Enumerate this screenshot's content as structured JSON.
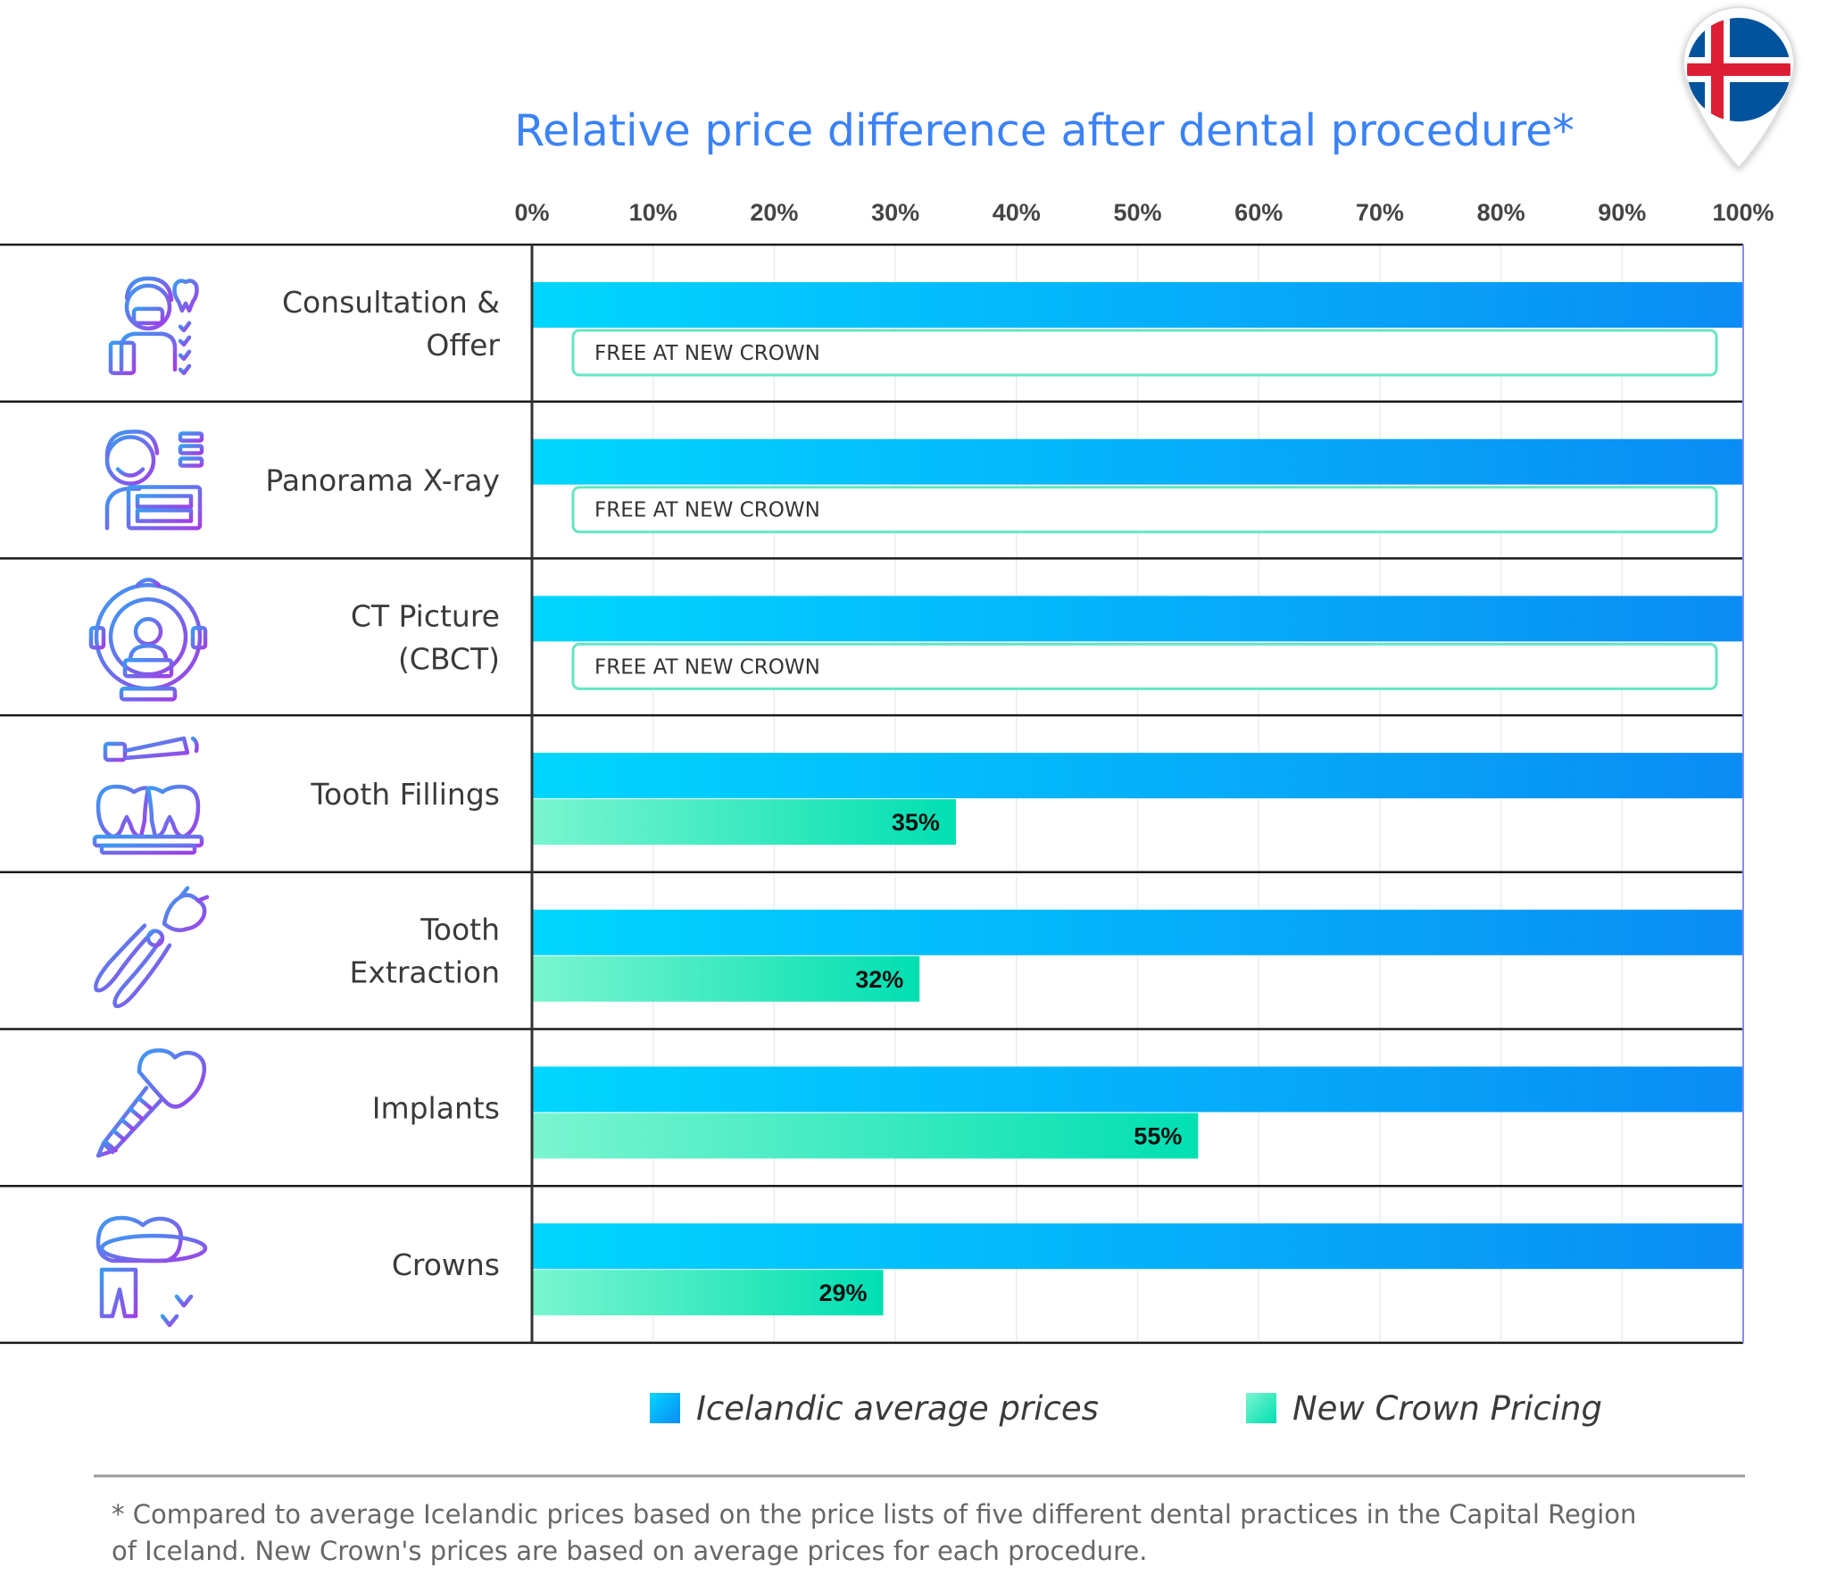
{
  "chart_data": {
    "type": "bar",
    "orientation": "horizontal",
    "title": "Relative price difference after dental procedure*",
    "x_ticks": [
      "0%",
      "10%",
      "20%",
      "30%",
      "40%",
      "50%",
      "60%",
      "70%",
      "80%",
      "90%",
      "100%"
    ],
    "xlim": [
      0,
      100
    ],
    "grid": true,
    "categories": [
      {
        "label_lines": [
          "Consultation &",
          "Offer"
        ],
        "icon": "consultation-icon"
      },
      {
        "label_lines": [
          "Panorama X-ray"
        ],
        "icon": "xray-icon"
      },
      {
        "label_lines": [
          "CT Picture",
          "(CBCT)"
        ],
        "icon": "ct-scanner-icon"
      },
      {
        "label_lines": [
          "Tooth Fillings"
        ],
        "icon": "filling-icon"
      },
      {
        "label_lines": [
          "Tooth",
          "Extraction"
        ],
        "icon": "extraction-icon"
      },
      {
        "label_lines": [
          "Implants"
        ],
        "icon": "implant-icon"
      },
      {
        "label_lines": [
          "Crowns"
        ],
        "icon": "crown-icon"
      }
    ],
    "series": [
      {
        "name": "Icelandic average prices",
        "color_start": "#00d6ff",
        "color_end": "#0a8cf5",
        "values": [
          100,
          100,
          100,
          100,
          100,
          100,
          100
        ]
      },
      {
        "name": "New Crown Pricing",
        "color_start": "#7af5cf",
        "color_end": "#00dfb2",
        "values": [
          0,
          0,
          0,
          35,
          32,
          55,
          29
        ],
        "value_labels": [
          "FREE AT NEW CROWN",
          "FREE AT NEW CROWN",
          "FREE AT NEW CROWN",
          "35%",
          "32%",
          "55%",
          "29%"
        ]
      }
    ],
    "legend_position": "bottom",
    "footnote_lines": [
      "* Compared to average Icelandic prices based on the price lists of five different dental practices in the Capital Region",
      "of Iceland. New Crown's prices are based on average prices for each procedure."
    ]
  },
  "flag": {
    "icon": "iceland-flag-pin-icon",
    "blue": "#02529c",
    "white": "#ffffff",
    "red": "#dc1e35"
  },
  "icon_color_start": "#3a9bf2",
  "icon_color_end": "#a040e6"
}
